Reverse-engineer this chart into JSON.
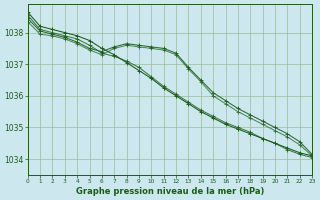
{
  "bg_color": "#cce8ee",
  "grid_color": "#99bb99",
  "line_colors": [
    "#1a5c1a",
    "#1a5c1a",
    "#1a5c1a",
    "#1a5c1a"
  ],
  "xlabel": "Graphe pression niveau de la mer (hPa)",
  "xlim": [
    0,
    23
  ],
  "ylim": [
    1033.5,
    1038.9
  ],
  "yticks": [
    1034,
    1035,
    1036,
    1037,
    1038
  ],
  "xticks": [
    0,
    1,
    2,
    3,
    4,
    5,
    6,
    7,
    8,
    9,
    10,
    11,
    12,
    13,
    14,
    15,
    16,
    17,
    18,
    19,
    20,
    21,
    22,
    23
  ],
  "series": [
    [
      1038.65,
      1038.2,
      1038.1,
      1038.0,
      1037.9,
      1037.75,
      1037.5,
      1037.3,
      1037.05,
      1036.8,
      1036.55,
      1036.25,
      1036.0,
      1035.75,
      1035.5,
      1035.3,
      1035.1,
      1034.95,
      1034.8,
      1034.65,
      1034.5,
      1034.35,
      1034.2,
      1034.1
    ],
    [
      1038.55,
      1038.1,
      1038.0,
      1037.9,
      1037.8,
      1037.6,
      1037.35,
      1037.25,
      1037.1,
      1036.9,
      1036.6,
      1036.3,
      1036.05,
      1035.8,
      1035.55,
      1035.35,
      1035.15,
      1035.0,
      1034.85,
      1034.65,
      1034.5,
      1034.3,
      1034.15,
      1034.05
    ],
    [
      1038.45,
      1038.05,
      1037.95,
      1037.85,
      1037.7,
      1037.5,
      1037.4,
      1037.55,
      1037.65,
      1037.6,
      1037.55,
      1037.5,
      1037.35,
      1036.9,
      1036.5,
      1036.1,
      1035.85,
      1035.6,
      1035.4,
      1035.2,
      1035.0,
      1034.8,
      1034.55,
      1034.15
    ],
    [
      1038.35,
      1037.95,
      1037.9,
      1037.8,
      1037.65,
      1037.45,
      1037.3,
      1037.5,
      1037.6,
      1037.55,
      1037.5,
      1037.45,
      1037.3,
      1036.85,
      1036.45,
      1036.0,
      1035.75,
      1035.5,
      1035.3,
      1035.1,
      1034.9,
      1034.7,
      1034.45,
      1034.1
    ]
  ]
}
